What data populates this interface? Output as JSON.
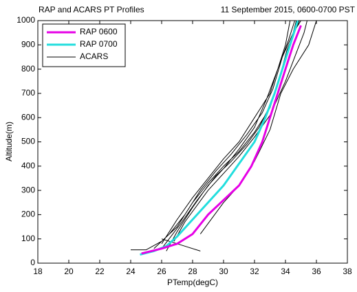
{
  "chart_data": {
    "type": "line",
    "title": "RAP and ACARS PT Profiles",
    "subtitle": "11 September 2015, 0600-0700 PST",
    "x_label": "PTemp(degC)",
    "y_label": "Altitude(m)",
    "xlim": [
      18,
      38
    ],
    "xticks": [
      18,
      20,
      22,
      24,
      26,
      28,
      30,
      32,
      34,
      36,
      38
    ],
    "ylim": [
      0,
      1000
    ],
    "yticks": [
      0,
      100,
      200,
      300,
      400,
      500,
      600,
      700,
      800,
      900,
      1000
    ],
    "grid": false,
    "legend": "upper left",
    "series": [
      {
        "name": "RAP 0600",
        "color": "#e600e6",
        "width": 3,
        "x": [
          24.7,
          26,
          27,
          28,
          29,
          30,
          31,
          31.8,
          32.5,
          33,
          33.5,
          34,
          34.5,
          35
        ],
        "values": [
          40,
          60,
          80,
          120,
          200,
          260,
          320,
          400,
          500,
          600,
          700,
          800,
          900,
          980
        ]
      },
      {
        "name": "RAP 0700",
        "color": "#22dede",
        "width": 3,
        "x": [
          24.6,
          25.5,
          26.3,
          27,
          28,
          29,
          30,
          31,
          32,
          32.7,
          33.3,
          33.8,
          34.3,
          34.8
        ],
        "values": [
          35,
          50,
          70,
          110,
          180,
          250,
          320,
          410,
          500,
          600,
          700,
          800,
          900,
          1000
        ]
      },
      {
        "name": "ACARS",
        "color": "#000000",
        "width": 1,
        "x": [
          24,
          25,
          26,
          27,
          28,
          29,
          30,
          31,
          32,
          33,
          33.8,
          34.3,
          34.7,
          null,
          26,
          27.5,
          28.5,
          null,
          28.5,
          30,
          31,
          32,
          33,
          33.7,
          34.5,
          35.5,
          36,
          null,
          26,
          27,
          28,
          29,
          30,
          31,
          32,
          33,
          33.5,
          34,
          34.3,
          null,
          25.5,
          26.5,
          27.5,
          28.5,
          29.5,
          30.5,
          31.5,
          32.5,
          33.2,
          33.8,
          34.5,
          35,
          null,
          26.3,
          27,
          28,
          29,
          30,
          31,
          32,
          32.8,
          33.5,
          34.2,
          34.6,
          null,
          26,
          27.2,
          28.3,
          29.5,
          30.5,
          31.5,
          32.3,
          33,
          33.6,
          34.1,
          34.9,
          null,
          26.8,
          27.5,
          29,
          30,
          31,
          32,
          33,
          34,
          34.6,
          35.2,
          35.4
        ],
        "values": [
          55,
          55,
          90,
          150,
          250,
          330,
          400,
          460,
          540,
          640,
          800,
          900,
          1000,
          null,
          100,
          70,
          50,
          null,
          120,
          250,
          320,
          420,
          550,
          700,
          800,
          900,
          1000,
          null,
          80,
          180,
          270,
          350,
          430,
          500,
          600,
          700,
          800,
          900,
          1000,
          null,
          60,
          120,
          200,
          300,
          380,
          450,
          530,
          620,
          720,
          850,
          950,
          1000,
          null,
          50,
          130,
          230,
          320,
          390,
          470,
          560,
          680,
          800,
          920,
          1000,
          null,
          60,
          160,
          260,
          360,
          420,
          490,
          560,
          650,
          760,
          880,
          1000,
          null,
          90,
          170,
          300,
          370,
          440,
          520,
          610,
          750,
          850,
          950,
          1000
        ]
      }
    ]
  }
}
